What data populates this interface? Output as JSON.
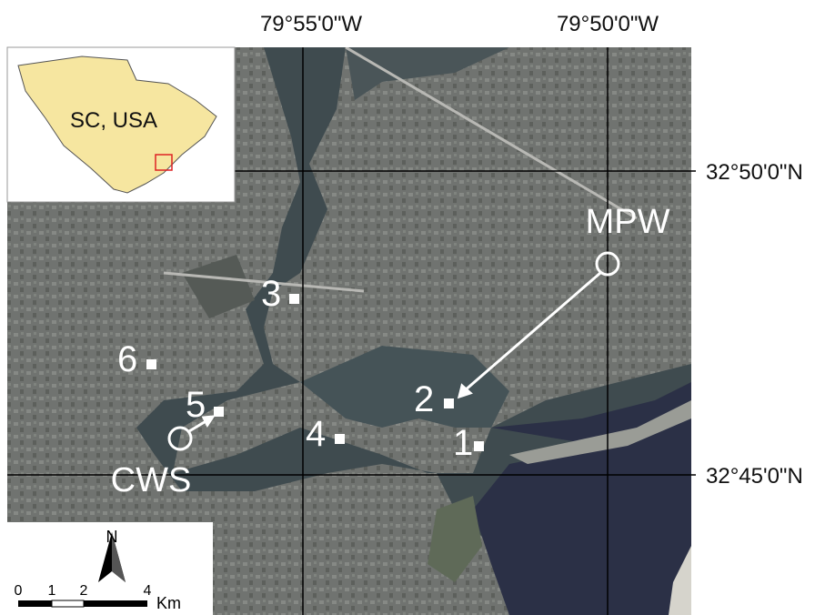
{
  "graticule": {
    "longitudes": [
      "79°55'0\"W",
      "79°50'0\"W"
    ],
    "latitudes": [
      "32°50'0\"N",
      "32°45'0\"N"
    ]
  },
  "inset": {
    "label": "SC, USA"
  },
  "sites": [
    "1",
    "2",
    "3",
    "4",
    "5",
    "6"
  ],
  "outfalls": [
    "MPW",
    "CWS"
  ],
  "scale_bar": {
    "ticks": [
      "0",
      "1",
      "2",
      "4"
    ],
    "unit": "Km"
  },
  "north_arrow": "N"
}
